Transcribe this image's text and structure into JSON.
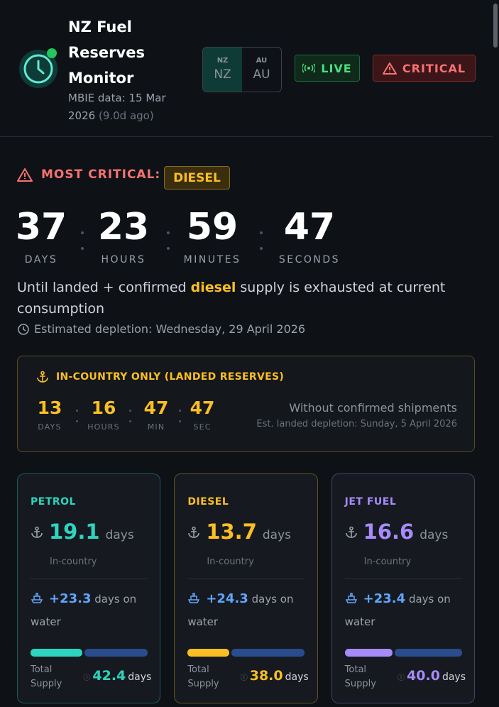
{
  "header": {
    "title": "NZ Fuel Reserves Monitor",
    "data_date": "MBIE data: 15 Mar 2026",
    "data_age": "(9.0d ago)",
    "region_toggle": [
      {
        "small": "NZ",
        "large": "NZ"
      },
      {
        "small": "AU",
        "large": "AU"
      }
    ],
    "live": "LIVE",
    "status": "CRITICAL"
  },
  "alert": {
    "label": "MOST CRITICAL:",
    "fuel": "DIESEL",
    "countdown": [
      {
        "value": 37,
        "unit": "DAYS"
      },
      {
        "value": 23,
        "unit": "HOURS"
      },
      {
        "value": 59,
        "unit": "MINUTES"
      },
      {
        "value": 47,
        "unit": "SECONDS"
      }
    ],
    "sentence_start": "Until landed + confirmed",
    "sentence_fuel": "diesel",
    "sentence_end": "supply is exhausted at current consumption",
    "depletion": "Estimated depletion: Wednesday, 29 April 2026"
  },
  "landed": {
    "title": "IN-COUNTRY ONLY (LANDED RESERVES)",
    "countdown": [
      {
        "value": 13,
        "unit": "DAYS"
      },
      {
        "value": 16,
        "unit": "HOURS"
      },
      {
        "value": 47,
        "unit": "MIN"
      },
      {
        "value": 47,
        "unit": "SEC"
      }
    ],
    "note": "Without confirmed shipments",
    "depletion": "Est. landed depletion: Sunday, 5 April 2026"
  },
  "cards": [
    {
      "name": "PETROL",
      "color": "#2dd4bf",
      "in_country": 19.1,
      "unit": "days",
      "in_country_label": "In-country",
      "on_water": {
        "value": 23.3,
        "label": "+23.3"
      },
      "on_water_unit": "days on water",
      "total_label": "Total Supply",
      "total": {
        "value": 42.4,
        "label": "42.4"
      },
      "total_unit": "days"
    },
    {
      "name": "DIESEL",
      "color": "#fbbf24",
      "in_country": 13.7,
      "unit": "days",
      "in_country_label": "In-country",
      "on_water": {
        "value": 24.3,
        "label": "+24.3"
      },
      "on_water_unit": "days on water",
      "total_label": "Total Supply",
      "total": {
        "value": 38,
        "label": "38.0"
      },
      "total_unit": "days"
    },
    {
      "name": "JET FUEL",
      "color": "#a78bfa",
      "in_country": 16.6,
      "unit": "days",
      "in_country_label": "In-country",
      "on_water": {
        "value": 23.4,
        "label": "+23.4"
      },
      "on_water_unit": "days on water",
      "total_label": "Total Supply",
      "total": {
        "value": 40,
        "label": "40.0"
      },
      "total_unit": "days"
    }
  ]
}
